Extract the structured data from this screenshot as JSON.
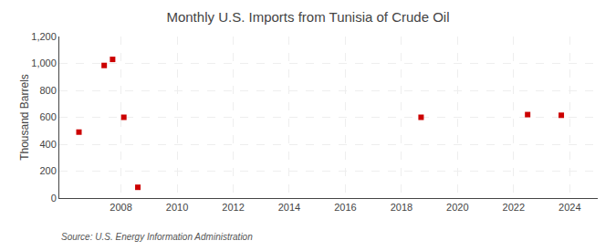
{
  "chart_data": {
    "type": "scatter",
    "title": "Monthly U.S. Imports from Tunisia of Crude Oil",
    "ylabel": "Thousand Barrels",
    "annotations": [
      "Source: U.S. Energy Information Administration"
    ],
    "x": [
      2006.5,
      2007.4,
      2007.7,
      2008.1,
      2008.6,
      2018.7,
      2022.5,
      2023.7
    ],
    "values": [
      490,
      985,
      1030,
      600,
      80,
      600,
      620,
      615
    ],
    "color": "#cc0000",
    "marker": "square",
    "xlim": [
      2005.8,
      2025.0
    ],
    "xticks": [
      2008,
      2010,
      2012,
      2014,
      2016,
      2018,
      2020,
      2022,
      2024
    ],
    "ylim": [
      0,
      1200
    ],
    "yticks": [
      0,
      200,
      400,
      600,
      800,
      {
        "value": 1000,
        "label": "1,000"
      },
      {
        "value": 1200,
        "label": "1,200"
      }
    ],
    "grid": true
  }
}
